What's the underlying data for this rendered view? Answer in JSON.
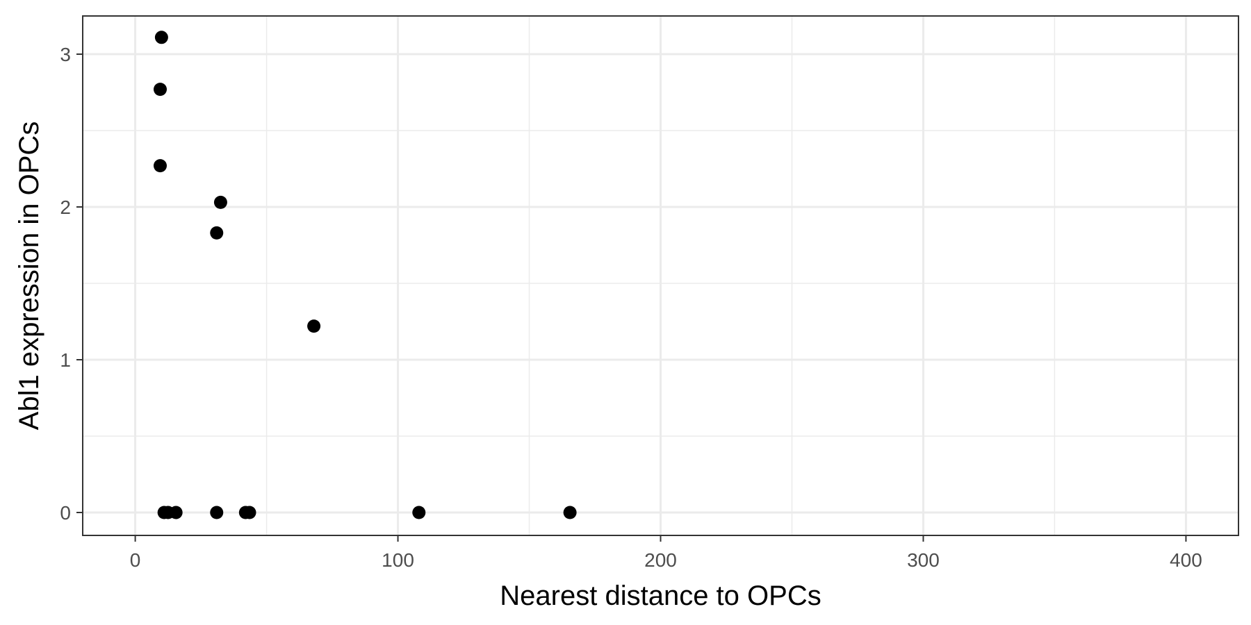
{
  "chart_data": {
    "type": "scatter",
    "title": "",
    "xlabel": "Nearest distance to OPCs",
    "ylabel": "Abl1 expression in OPCs",
    "xlim": [
      -20,
      420
    ],
    "ylim": [
      -0.15,
      3.25
    ],
    "x_ticks": [
      0,
      100,
      200,
      300,
      400
    ],
    "x_tick_labels": [
      "0",
      "100",
      "200",
      "300",
      "400"
    ],
    "x_minor_ticks": [
      50,
      150,
      250,
      350
    ],
    "y_ticks": [
      0,
      1,
      2,
      3
    ],
    "y_tick_labels": [
      "0",
      "1",
      "2",
      "3"
    ],
    "y_minor_ticks": [
      0.5,
      1.5,
      2.5
    ],
    "grid": true,
    "legend": "none",
    "point_color": "#000000",
    "grid_color": "#ebebeb",
    "points": [
      {
        "x": 10,
        "y": 3.11
      },
      {
        "x": 9.5,
        "y": 2.77
      },
      {
        "x": 9.5,
        "y": 2.27
      },
      {
        "x": 32.5,
        "y": 2.03
      },
      {
        "x": 31,
        "y": 1.83
      },
      {
        "x": 68,
        "y": 1.22
      },
      {
        "x": 11,
        "y": 0
      },
      {
        "x": 12.5,
        "y": 0
      },
      {
        "x": 15.5,
        "y": 0
      },
      {
        "x": 31,
        "y": 0
      },
      {
        "x": 42,
        "y": 0
      },
      {
        "x": 43.5,
        "y": 0
      },
      {
        "x": 108,
        "y": 0
      },
      {
        "x": 165.5,
        "y": 0
      }
    ]
  }
}
